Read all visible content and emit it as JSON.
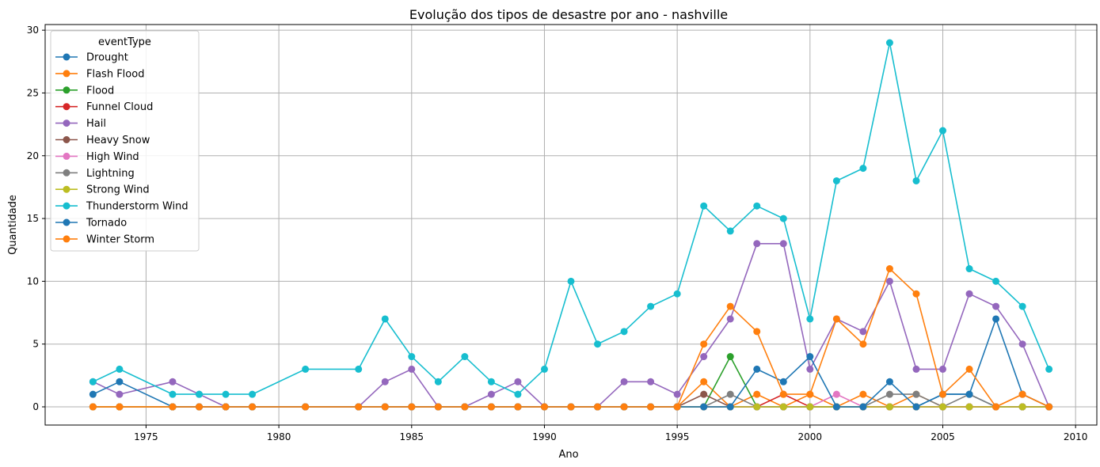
{
  "chart_data": {
    "type": "line",
    "title": "Evolução dos tipos de desastre por ano - nashville",
    "xlabel": "Ano",
    "ylabel": "Quantidade",
    "xlim": [
      1971.2,
      2010.8
    ],
    "ylim": [
      -1.45,
      30.45
    ],
    "xticks": [
      1975,
      1980,
      1985,
      1990,
      1995,
      2000,
      2005,
      2010
    ],
    "yticks": [
      0,
      5,
      10,
      15,
      20,
      25,
      30
    ],
    "grid": true,
    "legend": {
      "title": "eventType",
      "placement": "upper-left"
    },
    "x": [
      1973,
      1974,
      1976,
      1977,
      1978,
      1979,
      1981,
      1983,
      1984,
      1985,
      1986,
      1987,
      1988,
      1989,
      1990,
      1991,
      1992,
      1993,
      1994,
      1995,
      1996,
      1997,
      1998,
      1999,
      2000,
      2001,
      2002,
      2003,
      2004,
      2005,
      2006,
      2007,
      2008,
      2009
    ],
    "series": [
      {
        "name": "Drought",
        "color": "#1f77b4",
        "values": [
          0,
          0,
          0,
          0,
          0,
          0,
          0,
          0,
          0,
          0,
          0,
          0,
          0,
          0,
          0,
          0,
          0,
          0,
          0,
          0,
          0,
          0,
          0,
          0,
          0,
          0,
          0,
          0,
          0,
          1,
          1,
          0,
          0,
          0
        ]
      },
      {
        "name": "Flash Flood",
        "color": "#ff7f0e",
        "values": [
          0,
          0,
          0,
          0,
          0,
          0,
          0,
          0,
          0,
          0,
          0,
          0,
          0,
          0,
          0,
          0,
          0,
          0,
          0,
          0,
          2,
          0,
          1,
          0,
          1,
          0,
          1,
          0,
          1,
          0,
          0,
          0,
          1,
          0
        ]
      },
      {
        "name": "Flood",
        "color": "#2ca02c",
        "values": [
          0,
          0,
          0,
          0,
          0,
          0,
          0,
          0,
          0,
          0,
          0,
          0,
          0,
          0,
          0,
          0,
          0,
          0,
          0,
          0,
          0,
          4,
          0,
          0,
          0,
          0,
          0,
          0,
          0,
          0,
          0,
          0,
          0,
          0
        ]
      },
      {
        "name": "Funnel Cloud",
        "color": "#d62728",
        "values": [
          0,
          0,
          0,
          0,
          0,
          0,
          0,
          0,
          0,
          0,
          0,
          0,
          0,
          0,
          0,
          0,
          0,
          0,
          0,
          0,
          0,
          0,
          0,
          1,
          0,
          0,
          0,
          0,
          0,
          0,
          0,
          0,
          0,
          0
        ]
      },
      {
        "name": "Hail",
        "color": "#9467bd",
        "values": [
          2,
          1,
          2,
          1,
          0,
          0,
          0,
          0,
          2,
          3,
          0,
          0,
          1,
          2,
          0,
          0,
          0,
          2,
          2,
          1,
          4,
          7,
          13,
          13,
          3,
          7,
          6,
          10,
          3,
          3,
          9,
          8,
          5,
          0
        ]
      },
      {
        "name": "Heavy Snow",
        "color": "#8c564b",
        "values": [
          0,
          0,
          0,
          0,
          0,
          0,
          0,
          0,
          0,
          0,
          0,
          0,
          0,
          0,
          0,
          0,
          0,
          0,
          0,
          0,
          1,
          0,
          0,
          0,
          0,
          0,
          0,
          0,
          0,
          0,
          0,
          0,
          0,
          0
        ]
      },
      {
        "name": "High Wind",
        "color": "#e377c2",
        "values": [
          0,
          0,
          0,
          0,
          0,
          0,
          0,
          0,
          0,
          0,
          0,
          0,
          0,
          0,
          0,
          0,
          0,
          0,
          0,
          0,
          0,
          0,
          0,
          0,
          0,
          1,
          0,
          0,
          0,
          0,
          0,
          0,
          0,
          0
        ]
      },
      {
        "name": "Lightning",
        "color": "#7f7f7f",
        "values": [
          0,
          0,
          0,
          0,
          0,
          0,
          0,
          0,
          0,
          0,
          0,
          0,
          0,
          0,
          0,
          0,
          0,
          0,
          0,
          0,
          0,
          1,
          0,
          0,
          0,
          0,
          0,
          1,
          1,
          0,
          1,
          0,
          0,
          0
        ]
      },
      {
        "name": "Strong Wind",
        "color": "#bcbd22",
        "values": [
          0,
          0,
          0,
          0,
          0,
          0,
          0,
          0,
          0,
          0,
          0,
          0,
          0,
          0,
          0,
          0,
          0,
          0,
          0,
          0,
          0,
          0,
          0,
          0,
          0,
          0,
          0,
          0,
          0,
          0,
          0,
          0,
          0,
          0
        ]
      },
      {
        "name": "Thunderstorm Wind",
        "color": "#17becf",
        "values": [
          2,
          3,
          1,
          1,
          1,
          1,
          3,
          3,
          7,
          4,
          2,
          4,
          2,
          1,
          3,
          10,
          5,
          6,
          8,
          9,
          16,
          14,
          16,
          15,
          7,
          18,
          19,
          29,
          18,
          22,
          11,
          10,
          8,
          3
        ]
      },
      {
        "name": "Tornado",
        "color": "#1f77b4",
        "values": [
          1,
          2,
          0,
          0,
          0,
          0,
          0,
          0,
          0,
          0,
          0,
          0,
          0,
          0,
          0,
          0,
          0,
          0,
          0,
          0,
          0,
          0,
          3,
          2,
          4,
          0,
          0,
          2,
          0,
          1,
          1,
          7,
          1,
          0
        ]
      },
      {
        "name": "Winter Storm",
        "color": "#ff7f0e",
        "values": [
          0,
          0,
          0,
          0,
          0,
          0,
          0,
          0,
          0,
          0,
          0,
          0,
          0,
          0,
          0,
          0,
          0,
          0,
          0,
          0,
          5,
          8,
          6,
          1,
          1,
          7,
          5,
          11,
          9,
          1,
          3,
          0,
          1,
          0
        ]
      }
    ]
  }
}
